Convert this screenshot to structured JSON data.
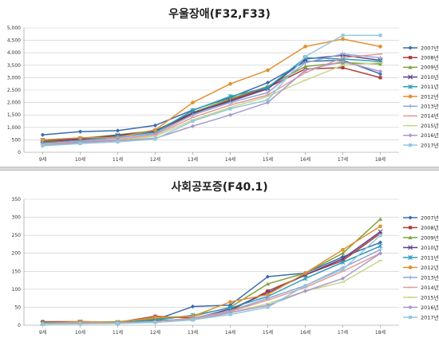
{
  "chart_data": [
    {
      "type": "line",
      "title": "우울장애(F32,F33)",
      "categories": [
        "9세",
        "10세",
        "11세",
        "12세",
        "13세",
        "14세",
        "15세",
        "16세",
        "17세",
        "18세"
      ],
      "ylim": [
        0,
        5000
      ],
      "yticks": [
        "0",
        "500",
        "1,000",
        "1,500",
        "2,000",
        "2,500",
        "3,000",
        "3,500",
        "4,000",
        "4,500",
        "5,000"
      ],
      "grid": true,
      "legend_position": "right",
      "series": [
        {
          "name": "2007년",
          "color": "#3a6bb0",
          "marker": "diamond",
          "values": [
            700,
            830,
            870,
            1080,
            1700,
            2200,
            2800,
            3650,
            3700,
            3150
          ]
        },
        {
          "name": "2008년",
          "color": "#b23a3a",
          "marker": "square",
          "values": [
            420,
            520,
            650,
            820,
            1550,
            2100,
            2600,
            3350,
            3400,
            3000
          ]
        },
        {
          "name": "2009년",
          "color": "#7fa33a",
          "marker": "triangle",
          "values": [
            450,
            560,
            700,
            870,
            1600,
            2150,
            2650,
            3450,
            3600,
            3550
          ]
        },
        {
          "name": "2010년",
          "color": "#5b3f8a",
          "marker": "x",
          "values": [
            480,
            540,
            680,
            850,
            1580,
            2050,
            2550,
            3750,
            3900,
            3700
          ]
        },
        {
          "name": "2011년",
          "color": "#2e9fb8",
          "marker": "star",
          "values": [
            380,
            470,
            640,
            800,
            1680,
            2250,
            2600,
            3800,
            3750,
            3650
          ]
        },
        {
          "name": "2012년",
          "color": "#e39032",
          "marker": "circle",
          "values": [
            500,
            580,
            600,
            900,
            2000,
            2750,
            3300,
            4250,
            4550,
            4250
          ]
        },
        {
          "name": "2013년",
          "color": "#8fa7d6",
          "marker": "plus",
          "values": [
            350,
            450,
            580,
            750,
            1500,
            2000,
            2400,
            3600,
            3950,
            3800
          ]
        },
        {
          "name": "2014년",
          "color": "#e39a9a",
          "marker": "dash",
          "values": [
            330,
            420,
            520,
            700,
            1400,
            1900,
            2300,
            3200,
            3800,
            3950
          ]
        },
        {
          "name": "2015년",
          "color": "#c8d68a",
          "marker": "dash",
          "values": [
            300,
            380,
            480,
            640,
            1300,
            1800,
            2250,
            2900,
            3500,
            3600
          ]
        },
        {
          "name": "2016년",
          "color": "#a898c8",
          "marker": "diamond",
          "values": [
            280,
            400,
            470,
            560,
            1050,
            1500,
            2000,
            3300,
            3650,
            3250
          ]
        },
        {
          "name": "2017년",
          "color": "#92c9de",
          "marker": "square",
          "values": [
            260,
            350,
            420,
            530,
            1250,
            1750,
            2100,
            3850,
            4700,
            4700
          ]
        }
      ]
    },
    {
      "type": "line",
      "title": "사회공포증(F40.1)",
      "categories": [
        "9세",
        "10세",
        "11세",
        "12세",
        "13세",
        "14세",
        "15세",
        "16세",
        "17세",
        "18세"
      ],
      "ylim": [
        0,
        350
      ],
      "yticks": [
        "0",
        "50",
        "100",
        "150",
        "200",
        "250",
        "300",
        "350"
      ],
      "grid": true,
      "legend_position": "right",
      "series": [
        {
          "name": "2007년",
          "color": "#3a6bb0",
          "marker": "diamond",
          "values": [
            5,
            5,
            8,
            15,
            52,
            56,
            135,
            145,
            190,
            230
          ]
        },
        {
          "name": "2008년",
          "color": "#b23a3a",
          "marker": "square",
          "values": [
            10,
            10,
            8,
            25,
            20,
            40,
            95,
            140,
            180,
            255
          ]
        },
        {
          "name": "2009년",
          "color": "#7fa33a",
          "marker": "triangle",
          "values": [
            8,
            8,
            10,
            18,
            25,
            50,
            115,
            145,
            200,
            295
          ]
        },
        {
          "name": "2010년",
          "color": "#5b3f8a",
          "marker": "x",
          "values": [
            5,
            8,
            8,
            12,
            18,
            45,
            90,
            140,
            185,
            260
          ]
        },
        {
          "name": "2011년",
          "color": "#2e9fb8",
          "marker": "star",
          "values": [
            6,
            10,
            8,
            14,
            28,
            48,
            80,
            130,
            175,
            220
          ]
        },
        {
          "name": "2012년",
          "color": "#e39032",
          "marker": "circle",
          "values": [
            5,
            10,
            8,
            22,
            25,
            65,
            85,
            145,
            210,
            275
          ]
        },
        {
          "name": "2013년",
          "color": "#8fa7d6",
          "marker": "plus",
          "values": [
            5,
            6,
            6,
            10,
            20,
            40,
            75,
            110,
            160,
            210
          ]
        },
        {
          "name": "2014년",
          "color": "#e39a9a",
          "marker": "dash",
          "values": [
            5,
            6,
            6,
            10,
            18,
            38,
            70,
            105,
            150,
            200
          ]
        },
        {
          "name": "2015년",
          "color": "#c8d68a",
          "marker": "dash",
          "values": [
            4,
            5,
            5,
            8,
            15,
            35,
            60,
            95,
            120,
            180
          ]
        },
        {
          "name": "2016년",
          "color": "#a898c8",
          "marker": "diamond",
          "values": [
            4,
            5,
            6,
            8,
            15,
            35,
            55,
            95,
            130,
            200
          ]
        },
        {
          "name": "2017년",
          "color": "#92c9de",
          "marker": "square",
          "values": [
            3,
            4,
            5,
            8,
            15,
            30,
            50,
            110,
            155,
            250
          ]
        }
      ]
    }
  ]
}
